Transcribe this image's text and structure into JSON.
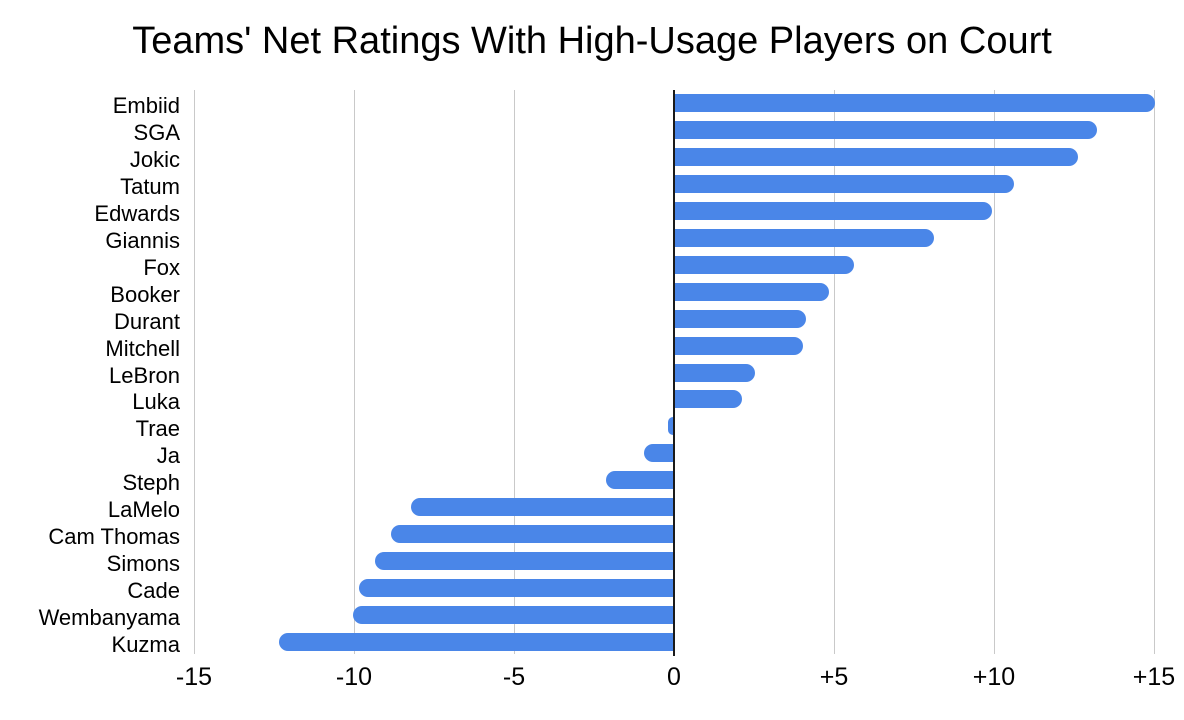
{
  "title": "Teams' Net Ratings With High-Usage Players on Court",
  "chart_data": {
    "type": "bar",
    "orientation": "horizontal",
    "title": "Teams' Net Ratings With High-Usage Players on Court",
    "xlabel": "",
    "ylabel": "",
    "xlim": [
      -15,
      15
    ],
    "grid": true,
    "legend": "none",
    "categories": [
      "Embiid",
      "SGA",
      "Jokic",
      "Tatum",
      "Edwards",
      "Giannis",
      "Fox",
      "Booker",
      "Durant",
      "Mitchell",
      "LeBron",
      "Luka",
      "Trae",
      "Ja",
      "Steph",
      "LaMelo",
      "Cam Thomas",
      "Simons",
      "Cade",
      "Wembanyama",
      "Kuzma"
    ],
    "values": [
      15.0,
      13.2,
      12.6,
      10.6,
      9.9,
      8.1,
      5.6,
      4.8,
      4.1,
      4.0,
      2.5,
      2.1,
      -0.1,
      -0.9,
      -2.1,
      -8.2,
      -8.8,
      -9.3,
      -9.8,
      -10.0,
      -12.3
    ],
    "x_ticks": [
      "-15",
      "-10",
      "-5",
      "0",
      "+5",
      "+10",
      "+15"
    ],
    "x_tick_values": [
      -15,
      -10,
      -5,
      0,
      5,
      10,
      15
    ],
    "colors": {
      "bar": "#4a86e8",
      "gridline": "#c9c9c9",
      "zero_line": "#1a1a1a",
      "text": "#000000",
      "background": "#ffffff"
    }
  }
}
